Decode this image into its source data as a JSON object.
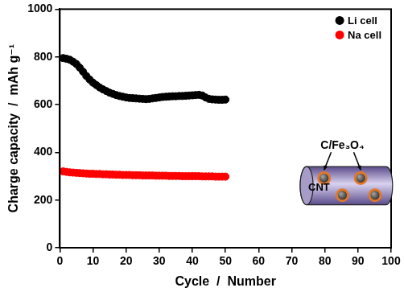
{
  "chart_data": {
    "type": "scatter",
    "x_label": "Cycle  /  Number",
    "y_label": "Charge capacity  /  mAh g⁻¹",
    "x": [
      1,
      2,
      3,
      4,
      5,
      6,
      7,
      8,
      9,
      10,
      11,
      12,
      13,
      14,
      15,
      16,
      17,
      18,
      19,
      20,
      21,
      22,
      23,
      24,
      25,
      26,
      27,
      28,
      29,
      30,
      31,
      32,
      33,
      34,
      35,
      36,
      37,
      38,
      39,
      40,
      41,
      42,
      43,
      44,
      45,
      46,
      47,
      48,
      49,
      50
    ],
    "series": [
      {
        "name": "Li cell",
        "color": "#000000",
        "marker": "circle",
        "values": [
          795,
          792,
          788,
          780,
          770,
          755,
          738,
          720,
          705,
          692,
          682,
          672,
          664,
          657,
          650,
          645,
          640,
          636,
          633,
          630,
          628,
          627,
          626,
          625,
          624,
          623,
          624,
          626,
          628,
          630,
          632,
          633,
          634,
          635,
          635,
          636,
          636,
          637,
          638,
          639,
          640,
          641,
          638,
          630,
          624,
          622,
          621,
          620,
          620,
          621
        ]
      },
      {
        "name": "Na cell",
        "color": "#ff0000",
        "marker": "circle",
        "values": [
          320,
          318,
          316,
          315,
          314,
          313,
          312,
          311,
          310,
          310,
          309,
          309,
          308,
          308,
          307,
          307,
          306,
          306,
          305,
          305,
          305,
          304,
          304,
          304,
          303,
          303,
          303,
          303,
          302,
          302,
          302,
          302,
          301,
          301,
          301,
          301,
          300,
          300,
          300,
          300,
          300,
          300,
          299,
          299,
          299,
          299,
          298,
          298,
          298,
          298
        ]
      }
    ],
    "xlim": [
      0,
      100
    ],
    "xticks": [
      0,
      10,
      20,
      30,
      40,
      50,
      60,
      70,
      80,
      90,
      100
    ],
    "ylim": [
      0,
      1000
    ],
    "yticks": [
      0,
      200,
      400,
      600,
      800,
      1000
    ],
    "grid": false,
    "legend": "upper right",
    "annotations": [
      {
        "text": "C/Fe₃O₄"
      },
      {
        "text": "CNT"
      }
    ]
  }
}
